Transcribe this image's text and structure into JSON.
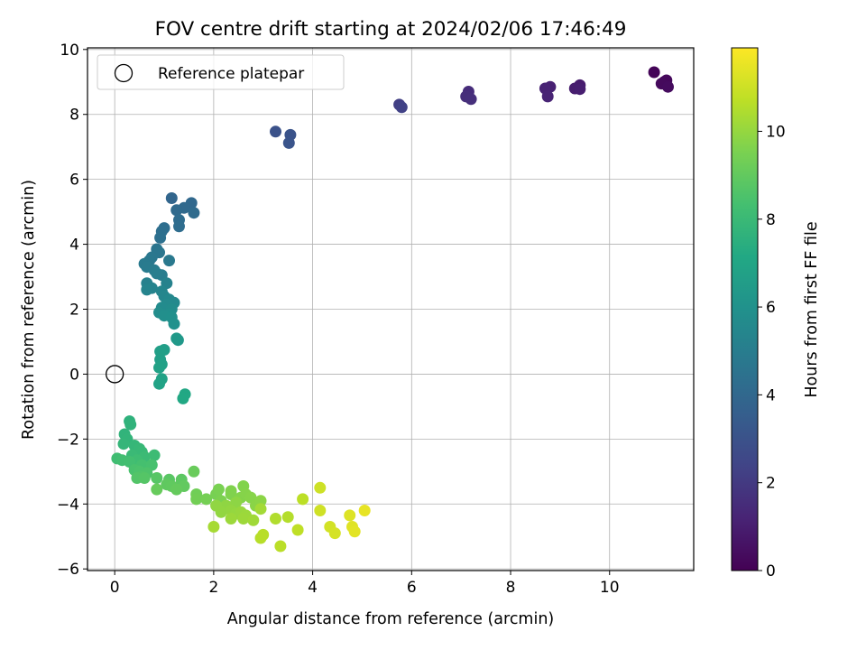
{
  "chart_data": {
    "type": "scatter",
    "title": "FOV centre drift starting at 2024/02/06 17:46:49",
    "xlabel": "Angular distance from reference (arcmin)",
    "ylabel": "Rotation from reference (arcmin)",
    "xlim": [
      -0.55,
      11.7
    ],
    "ylim": [
      -6.05,
      10.05
    ],
    "xticks": [
      0,
      2,
      4,
      6,
      8,
      10
    ],
    "yticks": [
      -6,
      -4,
      -2,
      0,
      2,
      4,
      6,
      8,
      10
    ],
    "grid": true,
    "legend": {
      "position": "top-left",
      "entries": [
        "Reference platepar"
      ]
    },
    "reference_point": {
      "label": "Reference platepar",
      "x": 0,
      "y": 0,
      "marker": "open-circle"
    },
    "colorbar": {
      "label": "Hours from first FF file",
      "colormap": "viridis",
      "range": [
        0,
        11.9
      ],
      "ticks": [
        0,
        2,
        4,
        6,
        8,
        10
      ]
    },
    "series": [
      {
        "color_by": "hours",
        "points": [
          [
            10.9,
            9.3,
            0.1
          ],
          [
            11.1,
            9.0,
            0.2
          ],
          [
            11.15,
            9.05,
            0.25
          ],
          [
            11.05,
            8.95,
            0.3
          ],
          [
            11.18,
            8.85,
            0.35
          ],
          [
            9.4,
            8.9,
            0.9
          ],
          [
            9.3,
            8.8,
            0.95
          ],
          [
            9.4,
            8.78,
            1.0
          ],
          [
            8.8,
            8.85,
            1.1
          ],
          [
            8.7,
            8.8,
            1.15
          ],
          [
            8.75,
            8.55,
            1.2
          ],
          [
            7.15,
            8.7,
            1.5
          ],
          [
            7.1,
            8.55,
            1.55
          ],
          [
            7.2,
            8.47,
            1.6
          ],
          [
            5.75,
            8.3,
            2.2
          ],
          [
            5.8,
            8.22,
            2.3
          ],
          [
            3.25,
            7.47,
            3.0
          ],
          [
            3.55,
            7.37,
            3.05
          ],
          [
            3.52,
            7.12,
            3.1
          ],
          [
            1.15,
            5.42,
            3.9
          ],
          [
            1.55,
            5.27,
            4.0
          ],
          [
            1.4,
            5.12,
            4.05
          ],
          [
            1.25,
            5.05,
            4.1
          ],
          [
            1.6,
            4.97,
            4.15
          ],
          [
            1.3,
            4.75,
            4.2
          ],
          [
            1.3,
            4.55,
            4.25
          ],
          [
            1.0,
            4.5,
            4.3
          ],
          [
            0.95,
            4.4,
            4.35
          ],
          [
            0.92,
            4.2,
            4.4
          ],
          [
            0.85,
            3.85,
            4.6
          ],
          [
            0.9,
            3.75,
            4.65
          ],
          [
            0.75,
            3.6,
            4.7
          ],
          [
            0.7,
            3.5,
            4.75
          ],
          [
            1.1,
            3.5,
            4.8
          ],
          [
            0.6,
            3.4,
            4.85
          ],
          [
            0.65,
            3.3,
            4.9
          ],
          [
            0.8,
            3.2,
            4.95
          ],
          [
            0.95,
            3.05,
            5.0
          ],
          [
            0.85,
            3.1,
            5.05
          ],
          [
            0.65,
            2.8,
            5.2
          ],
          [
            1.05,
            2.8,
            5.25
          ],
          [
            0.75,
            2.65,
            5.3
          ],
          [
            0.65,
            2.6,
            5.35
          ],
          [
            0.95,
            2.55,
            5.4
          ],
          [
            1.0,
            2.4,
            5.45
          ],
          [
            1.1,
            2.3,
            5.5
          ],
          [
            1.2,
            2.2,
            5.55
          ],
          [
            1.05,
            2.15,
            5.6
          ],
          [
            0.95,
            2.05,
            5.65
          ],
          [
            1.15,
            2.0,
            5.7
          ],
          [
            0.9,
            1.9,
            5.75
          ],
          [
            1.1,
            1.85,
            5.8
          ],
          [
            1.0,
            1.8,
            5.85
          ],
          [
            1.15,
            1.75,
            5.9
          ],
          [
            1.2,
            1.55,
            5.95
          ],
          [
            1.28,
            1.05,
            6.3
          ],
          [
            1.25,
            1.1,
            6.35
          ],
          [
            1.0,
            0.75,
            6.6
          ],
          [
            0.92,
            0.7,
            6.65
          ],
          [
            0.92,
            0.45,
            6.7
          ],
          [
            0.95,
            0.3,
            6.75
          ],
          [
            0.9,
            0.2,
            6.8
          ],
          [
            0.95,
            -0.15,
            6.85
          ],
          [
            0.9,
            -0.3,
            6.9
          ],
          [
            1.42,
            -0.62,
            7.1
          ],
          [
            1.38,
            -0.75,
            7.15
          ],
          [
            0.3,
            -1.45,
            7.6
          ],
          [
            0.32,
            -1.55,
            7.65
          ],
          [
            0.2,
            -1.85,
            7.7
          ],
          [
            0.25,
            -2.0,
            7.75
          ],
          [
            0.18,
            -2.15,
            7.8
          ],
          [
            0.4,
            -2.2,
            7.85
          ],
          [
            0.5,
            -2.3,
            7.9
          ],
          [
            0.55,
            -2.4,
            7.95
          ],
          [
            0.35,
            -2.5,
            8.0
          ],
          [
            0.6,
            -2.55,
            8.05
          ],
          [
            0.8,
            -2.5,
            8.1
          ],
          [
            0.45,
            -2.65,
            8.15
          ],
          [
            0.05,
            -2.6,
            8.2
          ],
          [
            0.15,
            -2.65,
            8.25
          ],
          [
            0.3,
            -2.7,
            8.3
          ],
          [
            0.55,
            -2.8,
            8.35
          ],
          [
            0.75,
            -2.8,
            8.4
          ],
          [
            0.4,
            -2.95,
            8.45
          ],
          [
            0.5,
            -3.0,
            8.5
          ],
          [
            0.65,
            -3.05,
            8.55
          ],
          [
            0.55,
            -3.15,
            8.6
          ],
          [
            0.45,
            -3.2,
            8.65
          ],
          [
            0.6,
            -3.2,
            8.7
          ],
          [
            0.85,
            -3.2,
            8.75
          ],
          [
            1.1,
            -3.25,
            8.8
          ],
          [
            1.35,
            -3.25,
            8.85
          ],
          [
            1.35,
            -3.35,
            8.9
          ],
          [
            1.05,
            -3.4,
            8.95
          ],
          [
            1.15,
            -3.45,
            8.97
          ],
          [
            1.4,
            -3.45,
            9.0
          ],
          [
            1.25,
            -3.55,
            9.05
          ],
          [
            0.85,
            -3.55,
            9.1
          ],
          [
            1.6,
            -3.0,
            9.15
          ],
          [
            1.65,
            -3.7,
            9.3
          ],
          [
            1.65,
            -3.85,
            9.35
          ],
          [
            1.85,
            -3.85,
            9.4
          ],
          [
            2.05,
            -3.7,
            9.45
          ],
          [
            2.1,
            -3.55,
            9.5
          ],
          [
            2.15,
            -3.9,
            9.55
          ],
          [
            2.35,
            -3.7,
            9.6
          ],
          [
            2.35,
            -3.6,
            9.62
          ],
          [
            2.6,
            -3.45,
            9.65
          ],
          [
            2.55,
            -3.8,
            9.7
          ],
          [
            2.65,
            -3.7,
            9.72
          ],
          [
            2.75,
            -3.8,
            9.75
          ],
          [
            2.85,
            -4.05,
            9.8
          ],
          [
            2.95,
            -3.9,
            9.82
          ],
          [
            2.45,
            -3.95,
            9.85
          ],
          [
            2.25,
            -4.05,
            9.9
          ],
          [
            2.05,
            -4.05,
            9.92
          ],
          [
            2.15,
            -4.25,
            9.95
          ],
          [
            2.35,
            -4.2,
            9.97
          ],
          [
            2.45,
            -4.3,
            10.0
          ],
          [
            2.55,
            -4.25,
            10.05
          ],
          [
            2.65,
            -4.35,
            10.1
          ],
          [
            2.35,
            -4.45,
            10.12
          ],
          [
            2.6,
            -4.45,
            10.15
          ],
          [
            2.8,
            -4.5,
            10.2
          ],
          [
            2.95,
            -4.15,
            10.25
          ],
          [
            2.0,
            -4.7,
            10.3
          ],
          [
            3.25,
            -4.45,
            10.5
          ],
          [
            3.5,
            -4.4,
            10.55
          ],
          [
            2.95,
            -5.05,
            10.6
          ],
          [
            3.0,
            -4.95,
            10.62
          ],
          [
            3.35,
            -5.3,
            10.65
          ],
          [
            3.8,
            -3.85,
            10.7
          ],
          [
            3.7,
            -4.8,
            10.75
          ],
          [
            4.15,
            -3.5,
            11.0
          ],
          [
            4.15,
            -4.2,
            11.05
          ],
          [
            4.35,
            -4.7,
            11.1
          ],
          [
            4.45,
            -4.9,
            11.15
          ],
          [
            4.75,
            -4.35,
            11.3
          ],
          [
            4.8,
            -4.7,
            11.35
          ],
          [
            4.85,
            -4.85,
            11.4
          ],
          [
            5.05,
            -4.2,
            11.5
          ]
        ]
      }
    ]
  }
}
